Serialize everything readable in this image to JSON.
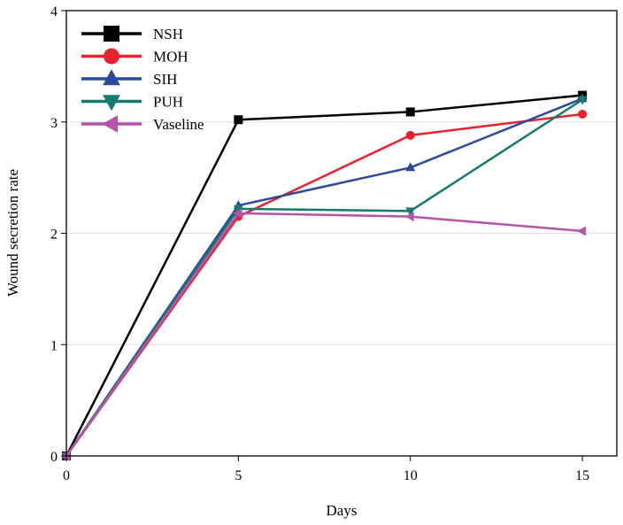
{
  "chart_data": {
    "type": "line",
    "title": "",
    "xlabel": "Days",
    "ylabel": "Wound secretion rate",
    "xlim": [
      0,
      16
    ],
    "ylim": [
      0,
      4
    ],
    "xticks": [
      0,
      5,
      10,
      15
    ],
    "yticks": [
      0,
      1,
      2,
      3,
      4
    ],
    "grid": "horizontal",
    "legend_position": "top-left",
    "x": [
      0,
      5,
      10,
      15
    ],
    "series": [
      {
        "name": "NSH",
        "values": [
          0,
          3.02,
          3.09,
          3.24
        ],
        "color": "#000000",
        "marker": "square"
      },
      {
        "name": "MOH",
        "values": [
          0,
          2.15,
          2.88,
          3.07
        ],
        "color": "#e8222e",
        "marker": "circle"
      },
      {
        "name": "SIH",
        "values": [
          0,
          2.25,
          2.59,
          3.21
        ],
        "color": "#2b4a9c",
        "marker": "triangle-up"
      },
      {
        "name": "PUH",
        "values": [
          0,
          2.22,
          2.2,
          3.2
        ],
        "color": "#147a72",
        "marker": "triangle-down"
      },
      {
        "name": "Vaseline",
        "values": [
          0,
          2.18,
          2.15,
          2.02
        ],
        "color": "#b455a8",
        "marker": "triangle-left"
      }
    ]
  }
}
